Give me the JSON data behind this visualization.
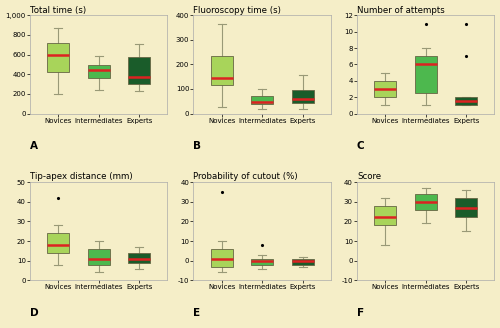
{
  "background_color": "#f5eec8",
  "median_color": "#dd2222",
  "whisker_color": "#999977",
  "box_edge_color": "#666644",
  "subplots": [
    {
      "title": "Total time (s)",
      "label": "A",
      "ylim": [
        0,
        1000
      ],
      "yticks": [
        0,
        200,
        400,
        600,
        800,
        1000
      ],
      "ytick_labels": [
        "0",
        "200",
        "400",
        "600",
        "800",
        "1,000"
      ],
      "groups": [
        "Novices",
        "Intermediates",
        "Experts"
      ],
      "colors": [
        "#a8d45a",
        "#4db84e",
        "#1a5c2a"
      ],
      "boxes": [
        {
          "q1": 420,
          "median": 600,
          "q3": 720,
          "whisker_low": 200,
          "whisker_high": 870,
          "outliers": []
        },
        {
          "q1": 360,
          "median": 440,
          "q3": 490,
          "whisker_low": 240,
          "whisker_high": 590,
          "outliers": []
        },
        {
          "q1": 300,
          "median": 375,
          "q3": 580,
          "whisker_low": 225,
          "whisker_high": 710,
          "outliers": []
        }
      ]
    },
    {
      "title": "Fluoroscopy time (s)",
      "label": "B",
      "ylim": [
        0,
        400
      ],
      "yticks": [
        0,
        100,
        200,
        300,
        400
      ],
      "ytick_labels": [
        "0",
        "100",
        "200",
        "300",
        "400"
      ],
      "groups": [
        "Novices",
        "Intermediates",
        "Experts"
      ],
      "colors": [
        "#a8d45a",
        "#4db84e",
        "#1a5c2a"
      ],
      "boxes": [
        {
          "q1": 115,
          "median": 145,
          "q3": 235,
          "whisker_low": 25,
          "whisker_high": 365,
          "outliers": []
        },
        {
          "q1": 38,
          "median": 47,
          "q3": 72,
          "whisker_low": 18,
          "whisker_high": 98,
          "outliers": []
        },
        {
          "q1": 42,
          "median": 58,
          "q3": 97,
          "whisker_low": 18,
          "whisker_high": 155,
          "outliers": []
        }
      ]
    },
    {
      "title": "Number of attempts",
      "label": "C",
      "ylim": [
        0,
        12
      ],
      "yticks": [
        0,
        2,
        4,
        6,
        8,
        10,
        12
      ],
      "ytick_labels": [
        "0",
        "2",
        "4",
        "6",
        "8",
        "10",
        "12"
      ],
      "groups": [
        "Novices",
        "Intermediates",
        "Experts"
      ],
      "colors": [
        "#a8d45a",
        "#4db84e",
        "#1a5c2a"
      ],
      "boxes": [
        {
          "q1": 2,
          "median": 3,
          "q3": 4,
          "whisker_low": 1,
          "whisker_high": 5,
          "outliers": []
        },
        {
          "q1": 2.5,
          "median": 6,
          "q3": 7,
          "whisker_low": 1,
          "whisker_high": 8,
          "outliers": [
            11
          ]
        },
        {
          "q1": 1,
          "median": 1.5,
          "q3": 2,
          "whisker_low": 1,
          "whisker_high": 2,
          "outliers": [
            7,
            11
          ]
        }
      ]
    },
    {
      "title": "Tip-apex distance (mm)",
      "label": "D",
      "ylim": [
        0,
        50
      ],
      "yticks": [
        0,
        10,
        20,
        30,
        40,
        50
      ],
      "ytick_labels": [
        "0",
        "10",
        "20",
        "30",
        "40",
        "50"
      ],
      "groups": [
        "Novices",
        "Intermediates",
        "Experts"
      ],
      "colors": [
        "#a8d45a",
        "#4db84e",
        "#1a5c2a"
      ],
      "boxes": [
        {
          "q1": 14,
          "median": 18,
          "q3": 24,
          "whisker_low": 8,
          "whisker_high": 28,
          "outliers": [
            42
          ]
        },
        {
          "q1": 8,
          "median": 11,
          "q3": 16,
          "whisker_low": 4,
          "whisker_high": 20,
          "outliers": []
        },
        {
          "q1": 9,
          "median": 11,
          "q3": 14,
          "whisker_low": 6,
          "whisker_high": 17,
          "outliers": []
        }
      ]
    },
    {
      "title": "Probability of cutout (%)",
      "label": "E",
      "ylim": [
        -10,
        40
      ],
      "yticks": [
        -10,
        0,
        10,
        20,
        30,
        40
      ],
      "ytick_labels": [
        "-10",
        "0",
        "10",
        "20",
        "30",
        "40"
      ],
      "groups": [
        "Novices",
        "Intermediates",
        "Experts"
      ],
      "colors": [
        "#a8d45a",
        "#4db84e",
        "#1a5c2a"
      ],
      "boxes": [
        {
          "q1": -3,
          "median": 1,
          "q3": 6,
          "whisker_low": -6,
          "whisker_high": 10,
          "outliers": [
            35
          ]
        },
        {
          "q1": -2,
          "median": 0,
          "q3": 1,
          "whisker_low": -4,
          "whisker_high": 3,
          "outliers": [
            8
          ]
        },
        {
          "q1": -2,
          "median": 0,
          "q3": 1,
          "whisker_low": -3,
          "whisker_high": 2,
          "outliers": []
        }
      ]
    },
    {
      "title": "Score",
      "label": "F",
      "ylim": [
        -10,
        40
      ],
      "yticks": [
        -10,
        0,
        10,
        20,
        30,
        40
      ],
      "ytick_labels": [
        "-10",
        "0",
        "10",
        "20",
        "30",
        "40"
      ],
      "groups": [
        "Novices",
        "Intermediates",
        "Experts"
      ],
      "colors": [
        "#a8d45a",
        "#4db84e",
        "#1a5c2a"
      ],
      "boxes": [
        {
          "q1": 18,
          "median": 22,
          "q3": 28,
          "whisker_low": 8,
          "whisker_high": 32,
          "outliers": []
        },
        {
          "q1": 26,
          "median": 30,
          "q3": 34,
          "whisker_low": 19,
          "whisker_high": 37,
          "outliers": []
        },
        {
          "q1": 22,
          "median": 27,
          "q3": 32,
          "whisker_low": 15,
          "whisker_high": 36,
          "outliers": []
        }
      ]
    }
  ]
}
